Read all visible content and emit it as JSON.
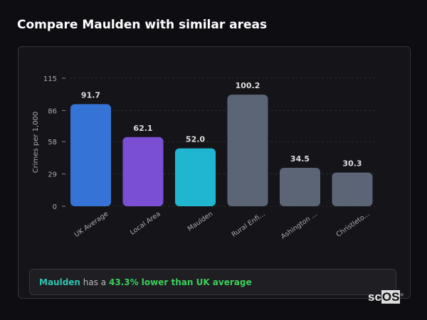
{
  "title": "Compare Maulden with similar areas",
  "chart_data": {
    "type": "bar",
    "ylabel": "Crimes per 1,000",
    "ylim": [
      0,
      115
    ],
    "yticks": [
      0,
      29,
      58,
      86,
      115
    ],
    "grid": true,
    "categories": [
      "UK Average",
      "Local Area",
      "Maulden",
      "Rural Enfi...",
      "Ashington ...",
      "Christleto..."
    ],
    "values": [
      91.7,
      62.1,
      52.0,
      100.2,
      34.5,
      30.3
    ],
    "value_labels": [
      "91.7",
      "62.1",
      "52.0",
      "100.2",
      "34.5",
      "30.3"
    ],
    "colors": [
      "#3574d6",
      "#7b4fd4",
      "#21b6cf",
      "#5b6576",
      "#5b6576",
      "#5b6576"
    ]
  },
  "callout": {
    "area": "Maulden",
    "middle": " has a ",
    "comparison": "43.3% lower than UK average",
    "area_color": "#2dc3b0",
    "comparison_color": "#3ccf5a"
  },
  "logo": {
    "text_a": "sc",
    "text_b": "OS",
    "mark": "®"
  }
}
